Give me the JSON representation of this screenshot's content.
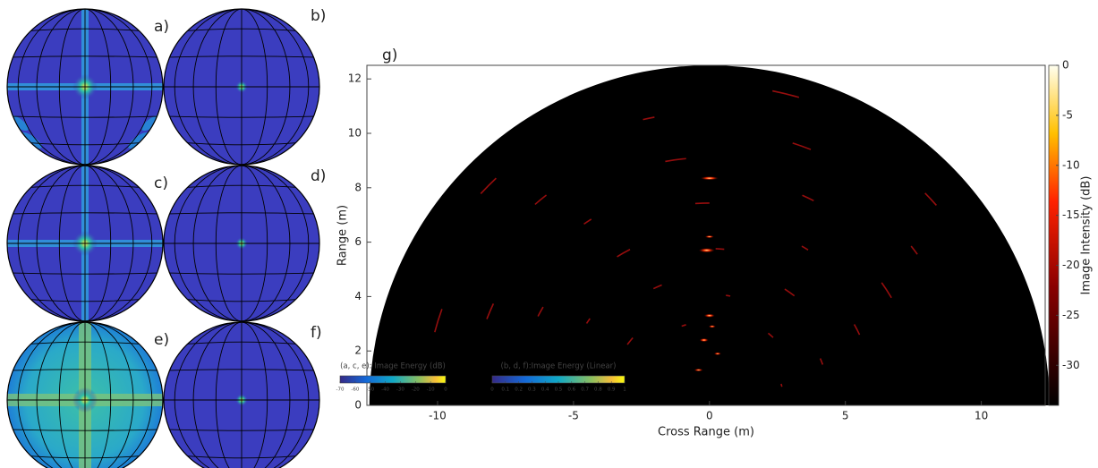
{
  "panels": [
    {
      "label": "a)"
    },
    {
      "label": "b)"
    },
    {
      "label": "c)"
    },
    {
      "label": "d)"
    },
    {
      "label": "e)"
    },
    {
      "label": "f)"
    }
  ],
  "chart_data": {
    "type": "heatmap",
    "label": "g)",
    "x_label": "Cross Range (m)",
    "y_label": "Range (m)",
    "xlim": [
      -12.6,
      12.35
    ],
    "ylim": [
      0,
      12.5
    ],
    "xticks": [
      -10,
      -5,
      0,
      5,
      10
    ],
    "yticks": [
      0,
      2,
      4,
      6,
      8,
      10,
      12
    ],
    "colorbar": {
      "label": "Image Intensity (dB)",
      "lim": [
        -34,
        0
      ],
      "ticks": [
        0,
        -5,
        -10,
        -15,
        -20,
        -25,
        -30
      ]
    }
  },
  "legends": [
    {
      "title": "(a, c, e): Image Energy (dB)",
      "lim": [
        -70,
        0
      ],
      "ticks": [
        -70,
        -60,
        -50,
        -40,
        -30,
        -20,
        -10,
        0
      ]
    },
    {
      "title": "(b, d, f):Image Energy (Linear)",
      "lim": [
        0,
        1
      ],
      "ticks": [
        0,
        0.1,
        0.2,
        0.3,
        0.4,
        0.5,
        0.6,
        0.7,
        0.8,
        0.9,
        1
      ]
    }
  ]
}
